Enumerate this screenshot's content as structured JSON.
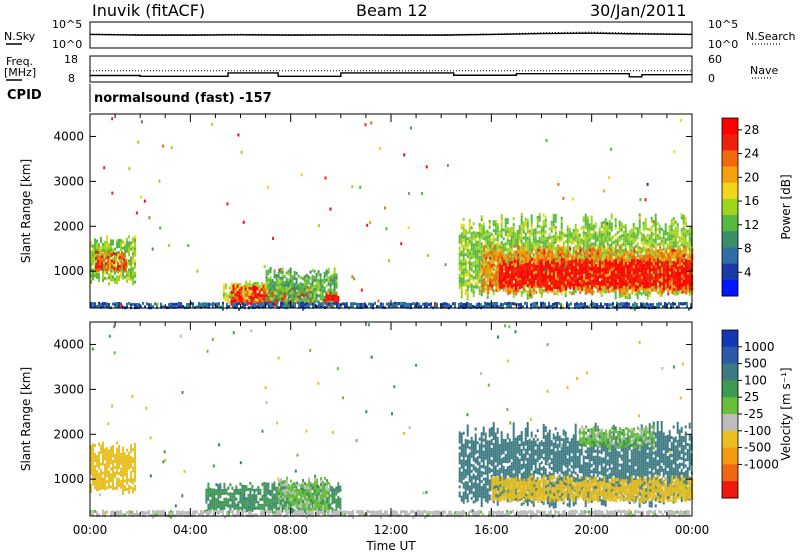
{
  "header": {
    "station": "Inuvik (fitACF)",
    "beam": "Beam 12",
    "date": "30/Jan/2011"
  },
  "panel_labels": {
    "nsky": "N.Sky",
    "nsky_ticks": [
      "10^5",
      "10^0"
    ],
    "nsearch": "N.Search",
    "nsearch_ticks": [
      "10^5",
      "10^0"
    ],
    "freq": "Freq.",
    "freq_unit": "[MHz]",
    "freq_ticks": [
      "18",
      "8"
    ],
    "nave": "Nave",
    "nave_ticks": [
      "60",
      "0"
    ],
    "cpid": "CPID",
    "cpid_value": "normalsound (fast) -157"
  },
  "colors": {
    "power_scale": [
      "#0018ff",
      "#1a3aa8",
      "#2e6ea6",
      "#3a8f6a",
      "#56b83e",
      "#9ed41e",
      "#f4d51c",
      "#f5a10e",
      "#f06a0c",
      "#f02010",
      "#ff0000"
    ],
    "velocity_scale": [
      "#1438b4",
      "#2c5aa8",
      "#3d7a82",
      "#3d9a50",
      "#68c03a",
      "#bdbdbd",
      "#e8c024",
      "#f29a12",
      "#ef6810",
      "#ee1a10"
    ]
  },
  "chart_data": [
    {
      "type": "line",
      "name": "noise_panel",
      "series": [
        {
          "name": "N.Sky",
          "x": [
            "00:00",
            "02:00",
            "04:00",
            "06:00",
            "08:00",
            "10:00",
            "12:00",
            "14:00",
            "16:00",
            "18:00",
            "20:00",
            "22:00",
            "24:00"
          ],
          "values": [
            400,
            300,
            300,
            350,
            300,
            320,
            300,
            300,
            400,
            600,
            700,
            500,
            400
          ]
        },
        {
          "name": "N.Search",
          "x": [
            "00:00",
            "02:00",
            "04:00",
            "06:00",
            "08:00",
            "10:00",
            "12:00",
            "14:00",
            "16:00",
            "18:00",
            "20:00",
            "22:00",
            "24:00"
          ],
          "values": [
            500,
            400,
            400,
            450,
            400,
            420,
            400,
            400,
            500,
            900,
            1200,
            700,
            500
          ]
        }
      ],
      "yscale": "log",
      "ylim": [
        1,
        100000
      ]
    },
    {
      "type": "line",
      "name": "freq_nave_panel",
      "series": [
        {
          "name": "Freq.",
          "x": [
            "00:00",
            "02:00",
            "02:00",
            "05:30",
            "05:30",
            "07:30",
            "07:30",
            "10:00",
            "10:00",
            "14:30",
            "14:30",
            "17:00",
            "17:00",
            "21:30",
            "21:30",
            "22:00",
            "22:00",
            "24:00"
          ],
          "values": [
            10.5,
            10.5,
            10.2,
            10.2,
            11.5,
            11.5,
            10.2,
            10.2,
            11.5,
            11.5,
            10.6,
            10.6,
            11.2,
            11.2,
            10.0,
            10.0,
            10.8,
            10.8
          ]
        },
        {
          "name": "Nave",
          "x": [
            "00:00",
            "24:00"
          ],
          "values": [
            26,
            26
          ]
        }
      ],
      "ylim_freq": [
        8,
        18
      ],
      "ylim_nave": [
        0,
        60
      ]
    },
    {
      "type": "heatmap",
      "name": "power",
      "xlabel": "",
      "ylabel": "Slant Range [km]",
      "x_ticks": [
        "00:00",
        "04:00",
        "08:00",
        "12:00",
        "16:00",
        "20:00",
        "00:00"
      ],
      "xlim_hours": [
        0,
        24
      ],
      "ylim": [
        180,
        4500
      ],
      "y_ticks": [
        1000,
        2000,
        3000,
        4000
      ],
      "colorbar_label": "Power [dB]",
      "colorbar_ticks": [
        4,
        8,
        12,
        16,
        20,
        24,
        28
      ],
      "colorbar_range": [
        0,
        30
      ],
      "regions": [
        {
          "t0": 0.0,
          "t1": 1.8,
          "r0": 700,
          "r1": 1850,
          "v": 14
        },
        {
          "t0": 0.2,
          "t1": 1.4,
          "r0": 1000,
          "r1": 1500,
          "v": 24
        },
        {
          "t0": 5.3,
          "t1": 7.0,
          "r0": 300,
          "r1": 800,
          "v": 16
        },
        {
          "t0": 5.6,
          "t1": 8.8,
          "r0": 250,
          "r1": 700,
          "v": 26
        },
        {
          "t0": 7.0,
          "t1": 9.8,
          "r0": 250,
          "r1": 1100,
          "v": 12
        },
        {
          "t0": 9.3,
          "t1": 9.9,
          "r0": 250,
          "r1": 550,
          "v": 27
        },
        {
          "t0": 14.7,
          "t1": 24.0,
          "r0": 400,
          "r1": 2300,
          "v": 14
        },
        {
          "t0": 15.6,
          "t1": 24.0,
          "r0": 500,
          "r1": 1600,
          "v": 22
        },
        {
          "t0": 16.3,
          "t1": 24.0,
          "r0": 600,
          "r1": 1300,
          "v": 28
        },
        {
          "t0": 0.0,
          "t1": 24.0,
          "r0": 180,
          "r1": 320,
          "v": 6
        }
      ]
    },
    {
      "type": "heatmap",
      "name": "velocity",
      "xlabel": "Time UT",
      "ylabel": "Slant Range [km]",
      "x_ticks": [
        "00:00",
        "04:00",
        "08:00",
        "12:00",
        "16:00",
        "20:00",
        "00:00"
      ],
      "xlim_hours": [
        0,
        24
      ],
      "ylim": [
        180,
        4500
      ],
      "y_ticks": [
        1000,
        2000,
        3000,
        4000
      ],
      "colorbar_label": "Velocity [m s⁻¹]",
      "colorbar_ticks": [
        1000,
        500,
        100,
        25,
        -25,
        -100,
        -500,
        -1000
      ],
      "regions": [
        {
          "t0": 0.0,
          "t1": 1.8,
          "r0": 700,
          "r1": 1850,
          "v": -250
        },
        {
          "t0": 4.6,
          "t1": 10.0,
          "r0": 250,
          "r1": 950,
          "v": 80
        },
        {
          "t0": 7.5,
          "t1": 9.5,
          "r0": 250,
          "r1": 1100,
          "v": 0
        },
        {
          "t0": 14.7,
          "t1": 24.0,
          "r0": 400,
          "r1": 2300,
          "v": 200
        },
        {
          "t0": 16.0,
          "t1": 24.0,
          "r0": 500,
          "r1": 1100,
          "v": -200
        },
        {
          "t0": 19.5,
          "t1": 22.5,
          "r0": 1700,
          "r1": 2200,
          "v": 0
        },
        {
          "t0": 0.0,
          "t1": 24.0,
          "r0": 180,
          "r1": 320,
          "v": -60
        }
      ]
    }
  ]
}
